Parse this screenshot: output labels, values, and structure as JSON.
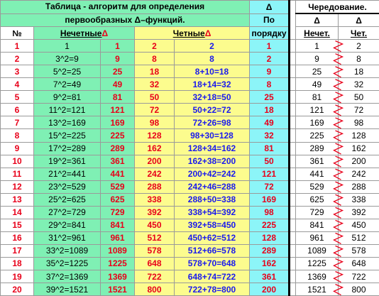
{
  "header": {
    "title_line1": "Таблица - алгоритм для определения",
    "title_line2": "первообразных Δ–функций.",
    "num": "№",
    "odd": "Нечетные",
    "odd_delta": "Δ",
    "even": "Четные",
    "even_delta": "Δ",
    "order_delta": "Δ",
    "order_po": "По",
    "order_label": "порядку",
    "alt_title": "Чередование.",
    "alt_delta1": "Δ",
    "alt_delta2": "Δ",
    "alt_odd": "Нечет.",
    "alt_even": "Чет."
  },
  "rows": [
    {
      "n": "1",
      "sq": "1",
      "o": "1",
      "e": "2",
      "es": "2",
      "ord": "1",
      "a": "1",
      "b": "2"
    },
    {
      "n": "2",
      "sq": "3^2=9",
      "o": "9",
      "e": "8",
      "es": "8",
      "ord": "2",
      "a": "9",
      "b": "8"
    },
    {
      "n": "3",
      "sq": "5^2=25",
      "o": "25",
      "e": "18",
      "es": "8+10=18",
      "ord": "9",
      "a": "25",
      "b": "18"
    },
    {
      "n": "4",
      "sq": "7^2=49",
      "o": "49",
      "e": "32",
      "es": "18+14=32",
      "ord": "8",
      "a": "49",
      "b": "32"
    },
    {
      "n": "5",
      "sq": "9^2=81",
      "o": "81",
      "e": "50",
      "es": "32+18=50",
      "ord": "25",
      "a": "81",
      "b": "50"
    },
    {
      "n": "6",
      "sq": "11^2=121",
      "o": "121",
      "e": "72",
      "es": "50+22=72",
      "ord": "18",
      "a": "121",
      "b": "72"
    },
    {
      "n": "7",
      "sq": "13^2=169",
      "o": "169",
      "e": "98",
      "es": "72+26=98",
      "ord": "49",
      "a": "169",
      "b": "98"
    },
    {
      "n": "8",
      "sq": "15^2=225",
      "o": "225",
      "e": "128",
      "es": "98+30=128",
      "ord": "32",
      "a": "225",
      "b": "128"
    },
    {
      "n": "9",
      "sq": "17^2=289",
      "o": "289",
      "e": "162",
      "es": "128+34=162",
      "ord": "81",
      "a": "289",
      "b": "162"
    },
    {
      "n": "10",
      "sq": "19^2=361",
      "o": "361",
      "e": "200",
      "es": "162+38=200",
      "ord": "50",
      "a": "361",
      "b": "200"
    },
    {
      "n": "11",
      "sq": "21^2=441",
      "o": "441",
      "e": "242",
      "es": "200+42=242",
      "ord": "121",
      "a": "441",
      "b": "242"
    },
    {
      "n": "12",
      "sq": "23^2=529",
      "o": "529",
      "e": "288",
      "es": "242+46=288",
      "ord": "72",
      "a": "529",
      "b": "288"
    },
    {
      "n": "13",
      "sq": "25^2=625",
      "o": "625",
      "e": "338",
      "es": "288+50=338",
      "ord": "169",
      "a": "625",
      "b": "338"
    },
    {
      "n": "14",
      "sq": "27^2=729",
      "o": "729",
      "e": "392",
      "es": "338+54=392",
      "ord": "98",
      "a": "729",
      "b": "392"
    },
    {
      "n": "15",
      "sq": "29^2=841",
      "o": "841",
      "e": "450",
      "es": "392+58=450",
      "ord": "225",
      "a": "841",
      "b": "450"
    },
    {
      "n": "16",
      "sq": "31^2=961",
      "o": "961",
      "e": "512",
      "es": "450+62=512",
      "ord": "128",
      "a": "961",
      "b": "512"
    },
    {
      "n": "17",
      "sq": "33^2=1089",
      "o": "1089",
      "e": "578",
      "es": "512+66=578",
      "ord": "289",
      "a": "1089",
      "b": "578"
    },
    {
      "n": "18",
      "sq": "35^2=1225",
      "o": "1225",
      "e": "648",
      "es": "578+70=648",
      "ord": "162",
      "a": "1225",
      "b": "648"
    },
    {
      "n": "19",
      "sq": "37^2=1369",
      "o": "1369",
      "e": "722",
      "es": "648+74=722",
      "ord": "361",
      "a": "1369",
      "b": "722"
    },
    {
      "n": "20",
      "sq": "39^2=1521",
      "o": "1521",
      "e": "800",
      "es": "722+78=800",
      "ord": "200",
      "a": "1521",
      "b": "800"
    }
  ]
}
